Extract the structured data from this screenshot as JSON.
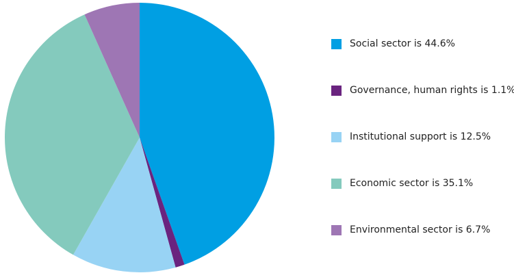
{
  "chart_data": {
    "type": "pie",
    "series": [
      {
        "label": "Social sector is 44.6%",
        "value": 44.6,
        "color": "#009fe3"
      },
      {
        "label": "Governance, human rights is 1.1%",
        "value": 1.1,
        "color": "#6a247f"
      },
      {
        "label": "Institutional support is 12.5%",
        "value": 12.5,
        "color": "#98d3f4"
      },
      {
        "label": "Economic sector is 35.1%",
        "value": 35.1,
        "color": "#84cabd"
      },
      {
        "label": "Environmental sector is 6.7%",
        "value": 6.7,
        "color": "#9e76b4"
      }
    ],
    "start_angle": "12 o'clock",
    "direction": "clockwise",
    "legend_position": "right"
  }
}
